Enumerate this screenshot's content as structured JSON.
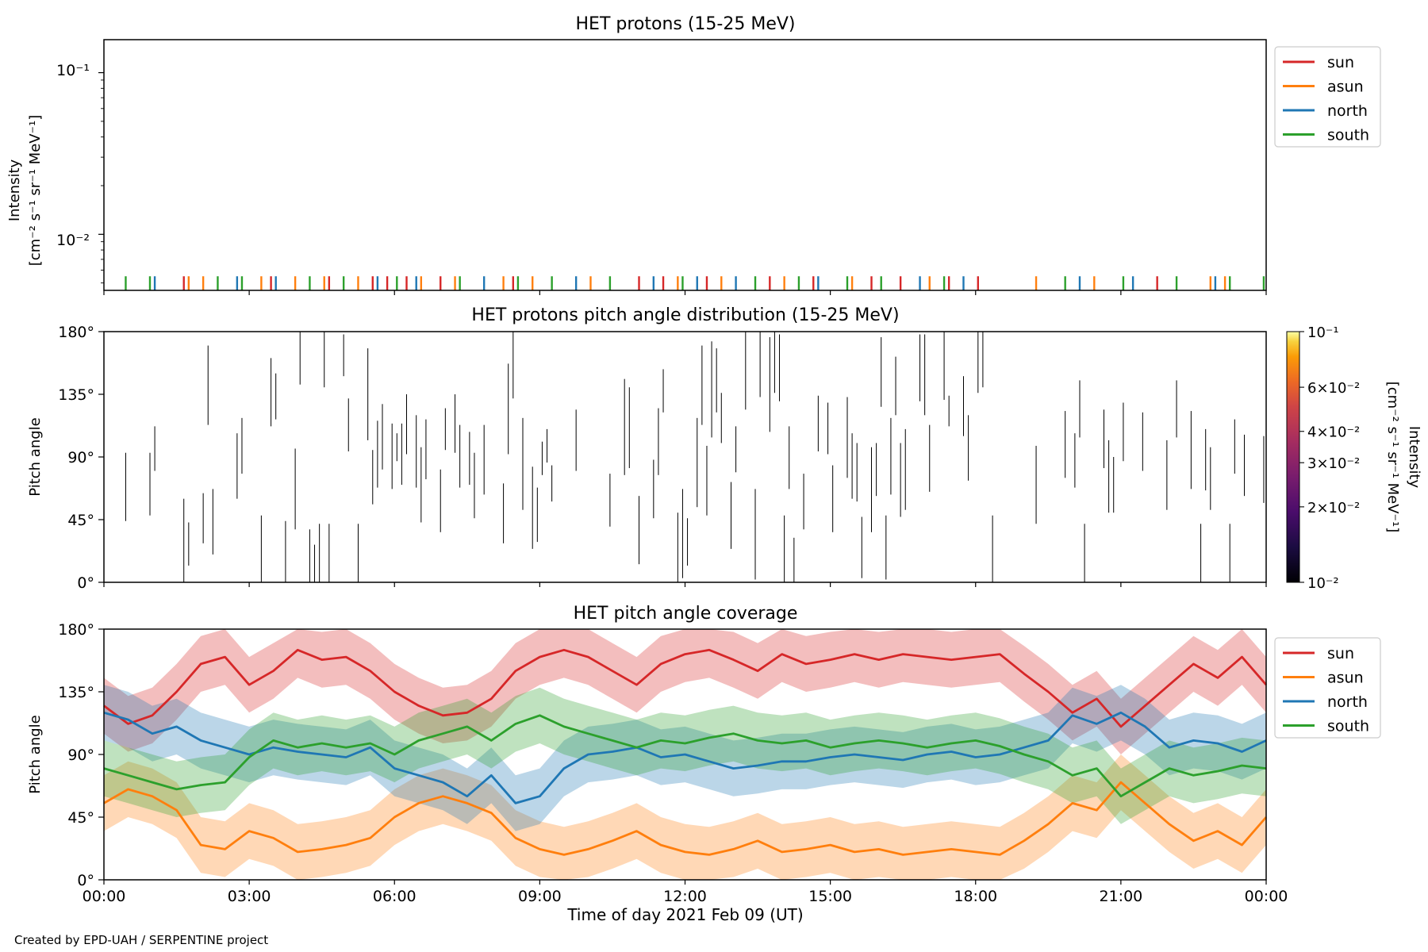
{
  "footer": "Created by EPD-UAH / SERPENTINE project",
  "xaxis": {
    "label": "Time of day 2021 Feb 09 (UT)",
    "ticks": [
      "00:00",
      "03:00",
      "06:00",
      "09:00",
      "12:00",
      "15:00",
      "18:00",
      "21:00",
      "00:00"
    ],
    "range_hours": [
      0,
      24
    ]
  },
  "colors": {
    "sun": "#d62728",
    "asun": "#ff7f0e",
    "north": "#1f77b4",
    "south": "#2ca02c"
  },
  "chart_data": [
    {
      "type": "line",
      "title": "HET protons (15-25 MeV)",
      "ylabel": "Intensity",
      "ylabel_unit": "[cm⁻² s⁻¹ sr⁻¹ MeV⁻¹]",
      "yscale": "log",
      "ylim": [
        0.0045,
        0.16
      ],
      "yticks": [
        "10⁻¹",
        "10⁻²"
      ],
      "legend": {
        "placement": "outside-top-right",
        "entries": [
          "sun",
          "asun",
          "north",
          "south"
        ]
      },
      "baseline": 0.0055,
      "spikes": {
        "sun": [
          1.65,
          3.45,
          4.65,
          5.55,
          5.85,
          6.25,
          6.95,
          8.45,
          11.05,
          11.55,
          12.45,
          13.75,
          14.65,
          15.85,
          16.45,
          17.45,
          18.05,
          21.75
        ],
        "asun": [
          1.75,
          2.05,
          3.25,
          3.95,
          4.55,
          5.25,
          6.55,
          7.25,
          8.25,
          8.85,
          10.05,
          11.85,
          12.75,
          14.05,
          15.45,
          17.05,
          19.25,
          20.45,
          22.85,
          23.15
        ],
        "north": [
          1.05,
          2.75,
          3.55,
          5.65,
          6.45,
          7.85,
          9.75,
          11.35,
          12.25,
          13.05,
          14.75,
          16.85,
          17.75,
          20.15,
          21.25,
          22.95
        ],
        "south": [
          0.45,
          0.95,
          2.35,
          2.85,
          4.25,
          4.95,
          6.05,
          7.35,
          8.55,
          9.25,
          10.45,
          11.95,
          13.45,
          14.35,
          15.35,
          16.05,
          17.35,
          19.85,
          21.05,
          22.15,
          23.25,
          23.95
        ]
      }
    },
    {
      "type": "heatmap",
      "title": "HET protons pitch angle distribution (15-25 MeV)",
      "ylabel": "Pitch angle",
      "ylim": [
        0,
        180
      ],
      "yticks": [
        "0°",
        "45°",
        "90°",
        "135°",
        "180°"
      ],
      "colorbar": {
        "label": "Intensity",
        "label_unit": "[cm⁻² s⁻¹ sr⁻¹ MeV⁻¹]",
        "scale": "log",
        "range": [
          0.01,
          0.1
        ],
        "ticks": [
          {
            "value": 0.1,
            "label": "10⁻¹"
          },
          {
            "value": 0.06,
            "label": "6×10⁻²"
          },
          {
            "value": 0.04,
            "label": "4×10⁻²"
          },
          {
            "value": 0.03,
            "label": "3×10⁻²"
          },
          {
            "value": 0.02,
            "label": "2×10⁻²"
          },
          {
            "value": 0.01,
            "label": "10⁻²"
          }
        ],
        "colormap": "inferno"
      },
      "cells": [
        [
          0.45,
          44,
          93
        ],
        [
          0.95,
          48,
          93
        ],
        [
          1.05,
          80,
          112
        ],
        [
          1.65,
          0,
          60
        ],
        [
          1.75,
          12,
          43
        ],
        [
          2.05,
          28,
          64
        ],
        [
          2.15,
          113,
          170
        ],
        [
          2.25,
          20,
          67
        ],
        [
          2.75,
          60,
          107
        ],
        [
          2.85,
          78,
          118
        ],
        [
          3.25,
          0,
          48
        ],
        [
          3.45,
          112,
          161
        ],
        [
          3.55,
          117,
          150
        ],
        [
          3.75,
          0,
          44
        ],
        [
          3.95,
          38,
          96
        ],
        [
          4.05,
          142,
          180
        ],
        [
          4.25,
          0,
          38
        ],
        [
          4.35,
          0,
          27
        ],
        [
          4.45,
          0,
          42
        ],
        [
          4.55,
          140,
          180
        ],
        [
          4.65,
          0,
          42
        ],
        [
          4.95,
          148,
          178
        ],
        [
          5.05,
          94,
          132
        ],
        [
          5.25,
          0,
          42
        ],
        [
          5.45,
          102,
          168
        ],
        [
          5.55,
          56,
          95
        ],
        [
          5.65,
          68,
          116
        ],
        [
          5.75,
          81,
          128
        ],
        [
          5.95,
          67,
          114
        ],
        [
          6.05,
          87,
          107
        ],
        [
          6.15,
          70,
          114
        ],
        [
          6.25,
          92,
          135
        ],
        [
          6.45,
          68,
          120
        ],
        [
          6.55,
          43,
          97
        ],
        [
          6.65,
          74,
          117
        ],
        [
          6.95,
          36,
          81
        ],
        [
          7.05,
          95,
          125
        ],
        [
          7.25,
          93,
          135
        ],
        [
          7.35,
          68,
          113
        ],
        [
          7.55,
          70,
          108
        ],
        [
          7.65,
          46,
          93
        ],
        [
          7.85,
          63,
          113
        ],
        [
          8.25,
          28,
          71
        ],
        [
          8.35,
          92,
          157
        ],
        [
          8.45,
          132,
          180
        ],
        [
          8.65,
          52,
          118
        ],
        [
          8.85,
          24,
          83
        ],
        [
          8.95,
          29,
          68
        ],
        [
          9.05,
          77,
          101
        ],
        [
          9.15,
          86,
          110
        ],
        [
          9.25,
          58,
          84
        ],
        [
          9.75,
          80,
          124
        ],
        [
          10.45,
          40,
          78
        ],
        [
          10.75,
          77,
          146
        ],
        [
          10.85,
          82,
          140
        ],
        [
          11.05,
          13,
          62
        ],
        [
          11.35,
          46,
          88
        ],
        [
          11.45,
          77,
          125
        ],
        [
          11.55,
          122,
          153
        ],
        [
          11.85,
          0,
          50
        ],
        [
          11.95,
          3,
          67
        ],
        [
          12.05,
          12,
          46
        ],
        [
          12.25,
          54,
          118
        ],
        [
          12.35,
          113,
          170
        ],
        [
          12.45,
          48,
          98
        ],
        [
          12.55,
          104,
          173
        ],
        [
          12.65,
          122,
          168
        ],
        [
          12.75,
          100,
          136
        ],
        [
          12.95,
          24,
          72
        ],
        [
          13.05,
          79,
          112
        ],
        [
          13.25,
          124,
          180
        ],
        [
          13.45,
          2,
          67
        ],
        [
          13.55,
          133,
          180
        ],
        [
          13.75,
          108,
          176
        ],
        [
          13.85,
          136,
          180
        ],
        [
          13.95,
          130,
          178
        ],
        [
          14.05,
          0,
          48
        ],
        [
          14.15,
          67,
          112
        ],
        [
          14.25,
          0,
          32
        ],
        [
          14.45,
          38,
          78
        ],
        [
          14.75,
          94,
          134
        ],
        [
          14.95,
          92,
          129
        ],
        [
          15.05,
          36,
          84
        ],
        [
          15.35,
          75,
          133
        ],
        [
          15.45,
          60,
          107
        ],
        [
          15.55,
          58,
          100
        ],
        [
          15.65,
          3,
          47
        ],
        [
          15.85,
          36,
          97
        ],
        [
          15.95,
          62,
          100
        ],
        [
          16.05,
          126,
          176
        ],
        [
          16.15,
          2,
          48
        ],
        [
          16.25,
          63,
          118
        ],
        [
          16.35,
          120,
          162
        ],
        [
          16.45,
          47,
          100
        ],
        [
          16.55,
          52,
          110
        ],
        [
          16.85,
          130,
          178
        ],
        [
          16.95,
          120,
          178
        ],
        [
          17.05,
          65,
          113
        ],
        [
          17.35,
          131,
          180
        ],
        [
          17.45,
          112,
          134
        ],
        [
          17.75,
          105,
          148
        ],
        [
          17.85,
          73,
          120
        ],
        [
          18.05,
          136,
          180
        ],
        [
          18.15,
          140,
          180
        ],
        [
          18.35,
          0,
          48
        ],
        [
          19.25,
          42,
          98
        ],
        [
          19.85,
          75,
          123
        ],
        [
          20.05,
          68,
          107
        ],
        [
          20.15,
          104,
          145
        ],
        [
          20.25,
          0,
          42
        ],
        [
          20.65,
          82,
          124
        ],
        [
          20.75,
          50,
          102
        ],
        [
          20.85,
          50,
          90
        ],
        [
          21.05,
          87,
          129
        ],
        [
          21.45,
          80,
          122
        ],
        [
          21.95,
          52,
          102
        ],
        [
          22.15,
          104,
          145
        ],
        [
          22.45,
          67,
          123
        ],
        [
          22.65,
          0,
          42
        ],
        [
          22.75,
          66,
          110
        ],
        [
          22.85,
          52,
          97
        ],
        [
          23.25,
          0,
          42
        ],
        [
          23.35,
          78,
          117
        ],
        [
          23.55,
          62,
          106
        ],
        [
          23.95,
          57,
          105
        ]
      ]
    },
    {
      "type": "area",
      "title": "HET pitch angle coverage",
      "ylabel": "Pitch angle",
      "ylim": [
        0,
        180
      ],
      "yticks": [
        "0°",
        "45°",
        "90°",
        "135°",
        "180°"
      ],
      "band_halfwidth_deg": 20,
      "legend": {
        "placement": "outside-top-right",
        "entries": [
          "sun",
          "asun",
          "north",
          "south"
        ]
      },
      "x_hours": [
        0,
        0.5,
        1,
        1.5,
        2,
        2.5,
        3,
        3.5,
        4,
        4.5,
        5,
        5.5,
        6,
        6.5,
        7,
        7.5,
        8,
        8.5,
        9,
        9.5,
        10,
        10.5,
        11,
        11.5,
        12,
        12.5,
        13,
        13.5,
        14,
        14.5,
        15,
        15.5,
        16,
        16.5,
        17,
        17.5,
        18,
        18.5,
        19,
        19.5,
        20,
        20.5,
        21,
        21.5,
        22,
        22.5,
        23,
        23.5,
        24
      ],
      "series": [
        {
          "name": "sun",
          "values": [
            125,
            112,
            118,
            135,
            155,
            160,
            140,
            150,
            165,
            158,
            160,
            150,
            135,
            125,
            118,
            120,
            130,
            150,
            160,
            165,
            160,
            150,
            140,
            155,
            162,
            165,
            158,
            150,
            162,
            155,
            158,
            162,
            158,
            162,
            160,
            158,
            160,
            162,
            148,
            135,
            120,
            130,
            110,
            125,
            140,
            155,
            145,
            160,
            140
          ]
        },
        {
          "name": "asun",
          "values": [
            55,
            65,
            60,
            50,
            25,
            22,
            35,
            30,
            20,
            22,
            25,
            30,
            45,
            55,
            60,
            55,
            48,
            30,
            22,
            18,
            22,
            28,
            35,
            25,
            20,
            18,
            22,
            28,
            20,
            22,
            25,
            20,
            22,
            18,
            20,
            22,
            20,
            18,
            28,
            40,
            55,
            50,
            70,
            55,
            40,
            28,
            35,
            25,
            45
          ]
        },
        {
          "name": "north",
          "values": [
            120,
            115,
            105,
            110,
            100,
            95,
            90,
            95,
            92,
            90,
            88,
            95,
            80,
            75,
            70,
            60,
            75,
            55,
            60,
            80,
            90,
            92,
            95,
            88,
            90,
            85,
            80,
            82,
            85,
            85,
            88,
            90,
            88,
            86,
            90,
            92,
            88,
            90,
            95,
            100,
            118,
            112,
            120,
            110,
            95,
            100,
            98,
            92,
            100
          ]
        },
        {
          "name": "south",
          "values": [
            80,
            75,
            70,
            65,
            68,
            70,
            88,
            100,
            95,
            98,
            95,
            98,
            90,
            100,
            105,
            110,
            100,
            112,
            118,
            110,
            105,
            100,
            95,
            100,
            98,
            102,
            105,
            100,
            98,
            100,
            95,
            98,
            100,
            98,
            95,
            98,
            100,
            96,
            90,
            85,
            75,
            80,
            60,
            70,
            80,
            75,
            78,
            82,
            80
          ]
        }
      ]
    }
  ]
}
